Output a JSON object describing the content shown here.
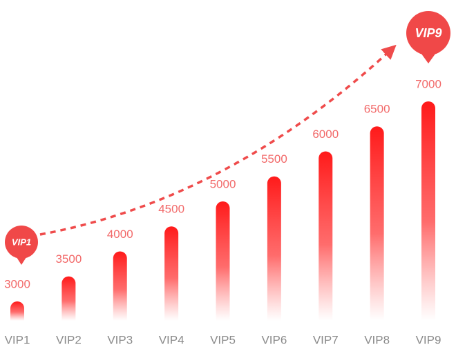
{
  "chart_data": {
    "type": "bar",
    "categories": [
      "VIP1",
      "VIP2",
      "VIP3",
      "VIP4",
      "VIP5",
      "VIP6",
      "VIP7",
      "VIP8",
      "VIP9"
    ],
    "values": [
      3000,
      3500,
      4000,
      4500,
      5000,
      5500,
      6000,
      6500,
      7000
    ],
    "color": "#ff1a1a"
  }
}
